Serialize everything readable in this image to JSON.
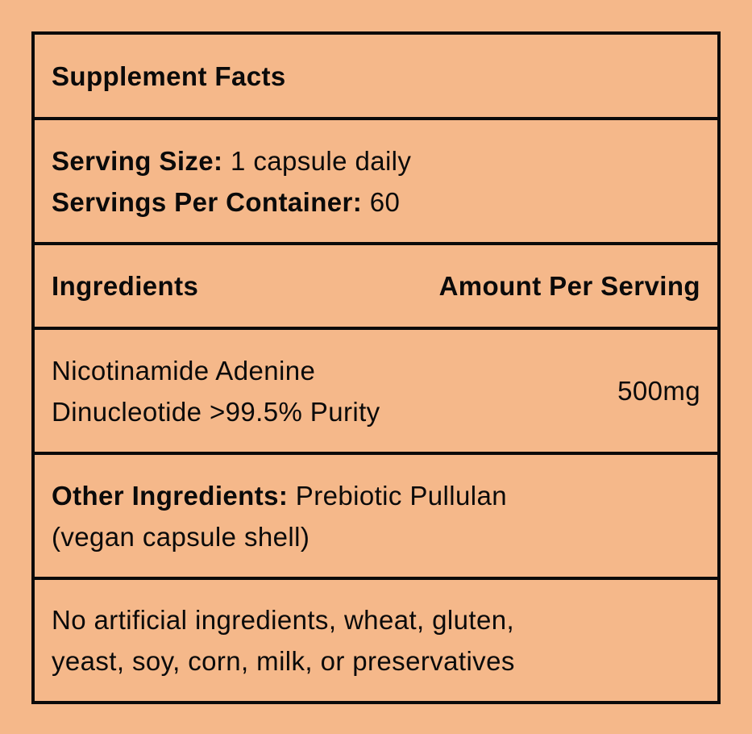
{
  "colors": {
    "background": "#F5B88A",
    "border": "#0a0a0a",
    "text": "#0a0a0a"
  },
  "title": "Supplement Facts",
  "serving": {
    "size_label": "Serving Size:",
    "size_value": " 1 capsule daily",
    "per_container_label": "Servings Per Container:",
    "per_container_value": " 60"
  },
  "header": {
    "ingredients": "Ingredients",
    "amount": "Amount Per Serving"
  },
  "ingredient": {
    "name_line1": "Nicotinamide Adenine",
    "name_line2": "Dinucleotide >99.5% Purity",
    "amount": "500mg"
  },
  "other": {
    "label": "Other Ingredients:",
    "value_line1": " Prebiotic Pullulan",
    "value_line2": "(vegan capsule shell)"
  },
  "note": {
    "line1": "No artificial ingredients, wheat, gluten,",
    "line2": "yeast, soy, corn, milk, or preservatives"
  }
}
